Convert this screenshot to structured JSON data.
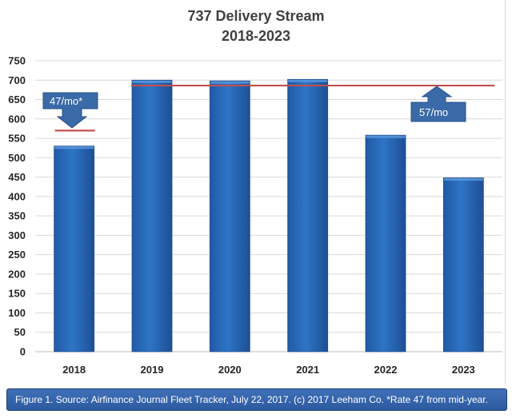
{
  "chart_data": {
    "type": "bar",
    "title_lines": [
      "737 Delivery Stream",
      "2018-2023"
    ],
    "categories": [
      "2018",
      "2019",
      "2020",
      "2021",
      "2022",
      "2023"
    ],
    "values": [
      530,
      700,
      698,
      702,
      558,
      448
    ],
    "ylim": [
      0,
      750
    ],
    "yticks": [
      0,
      50,
      100,
      150,
      200,
      250,
      300,
      350,
      400,
      450,
      500,
      550,
      600,
      650,
      700,
      750
    ],
    "grid": true,
    "bar_color": "#2e75c6",
    "rate_lines": [
      {
        "name": "47/mo rate",
        "value": 570,
        "from_category": "2018",
        "to_category": "2018",
        "color": "#c0504d"
      },
      {
        "name": "57/mo rate",
        "value": 686,
        "from_category": "2019",
        "to_category": "2023",
        "color": "#c0504d"
      }
    ],
    "annotations": [
      {
        "text": "47/mo*",
        "arrow": "down"
      },
      {
        "text": "57/mo",
        "arrow": "up"
      }
    ]
  },
  "caption": "Figure 1. Source: Airfinance Journal Fleet Tracker, July 22, 2017. (c) 2017 Leeham Co. *Rate 47 from mid-year.",
  "colors": {
    "callout_fill": "#3a6aa8",
    "caption_fill": "#3f70b8"
  }
}
